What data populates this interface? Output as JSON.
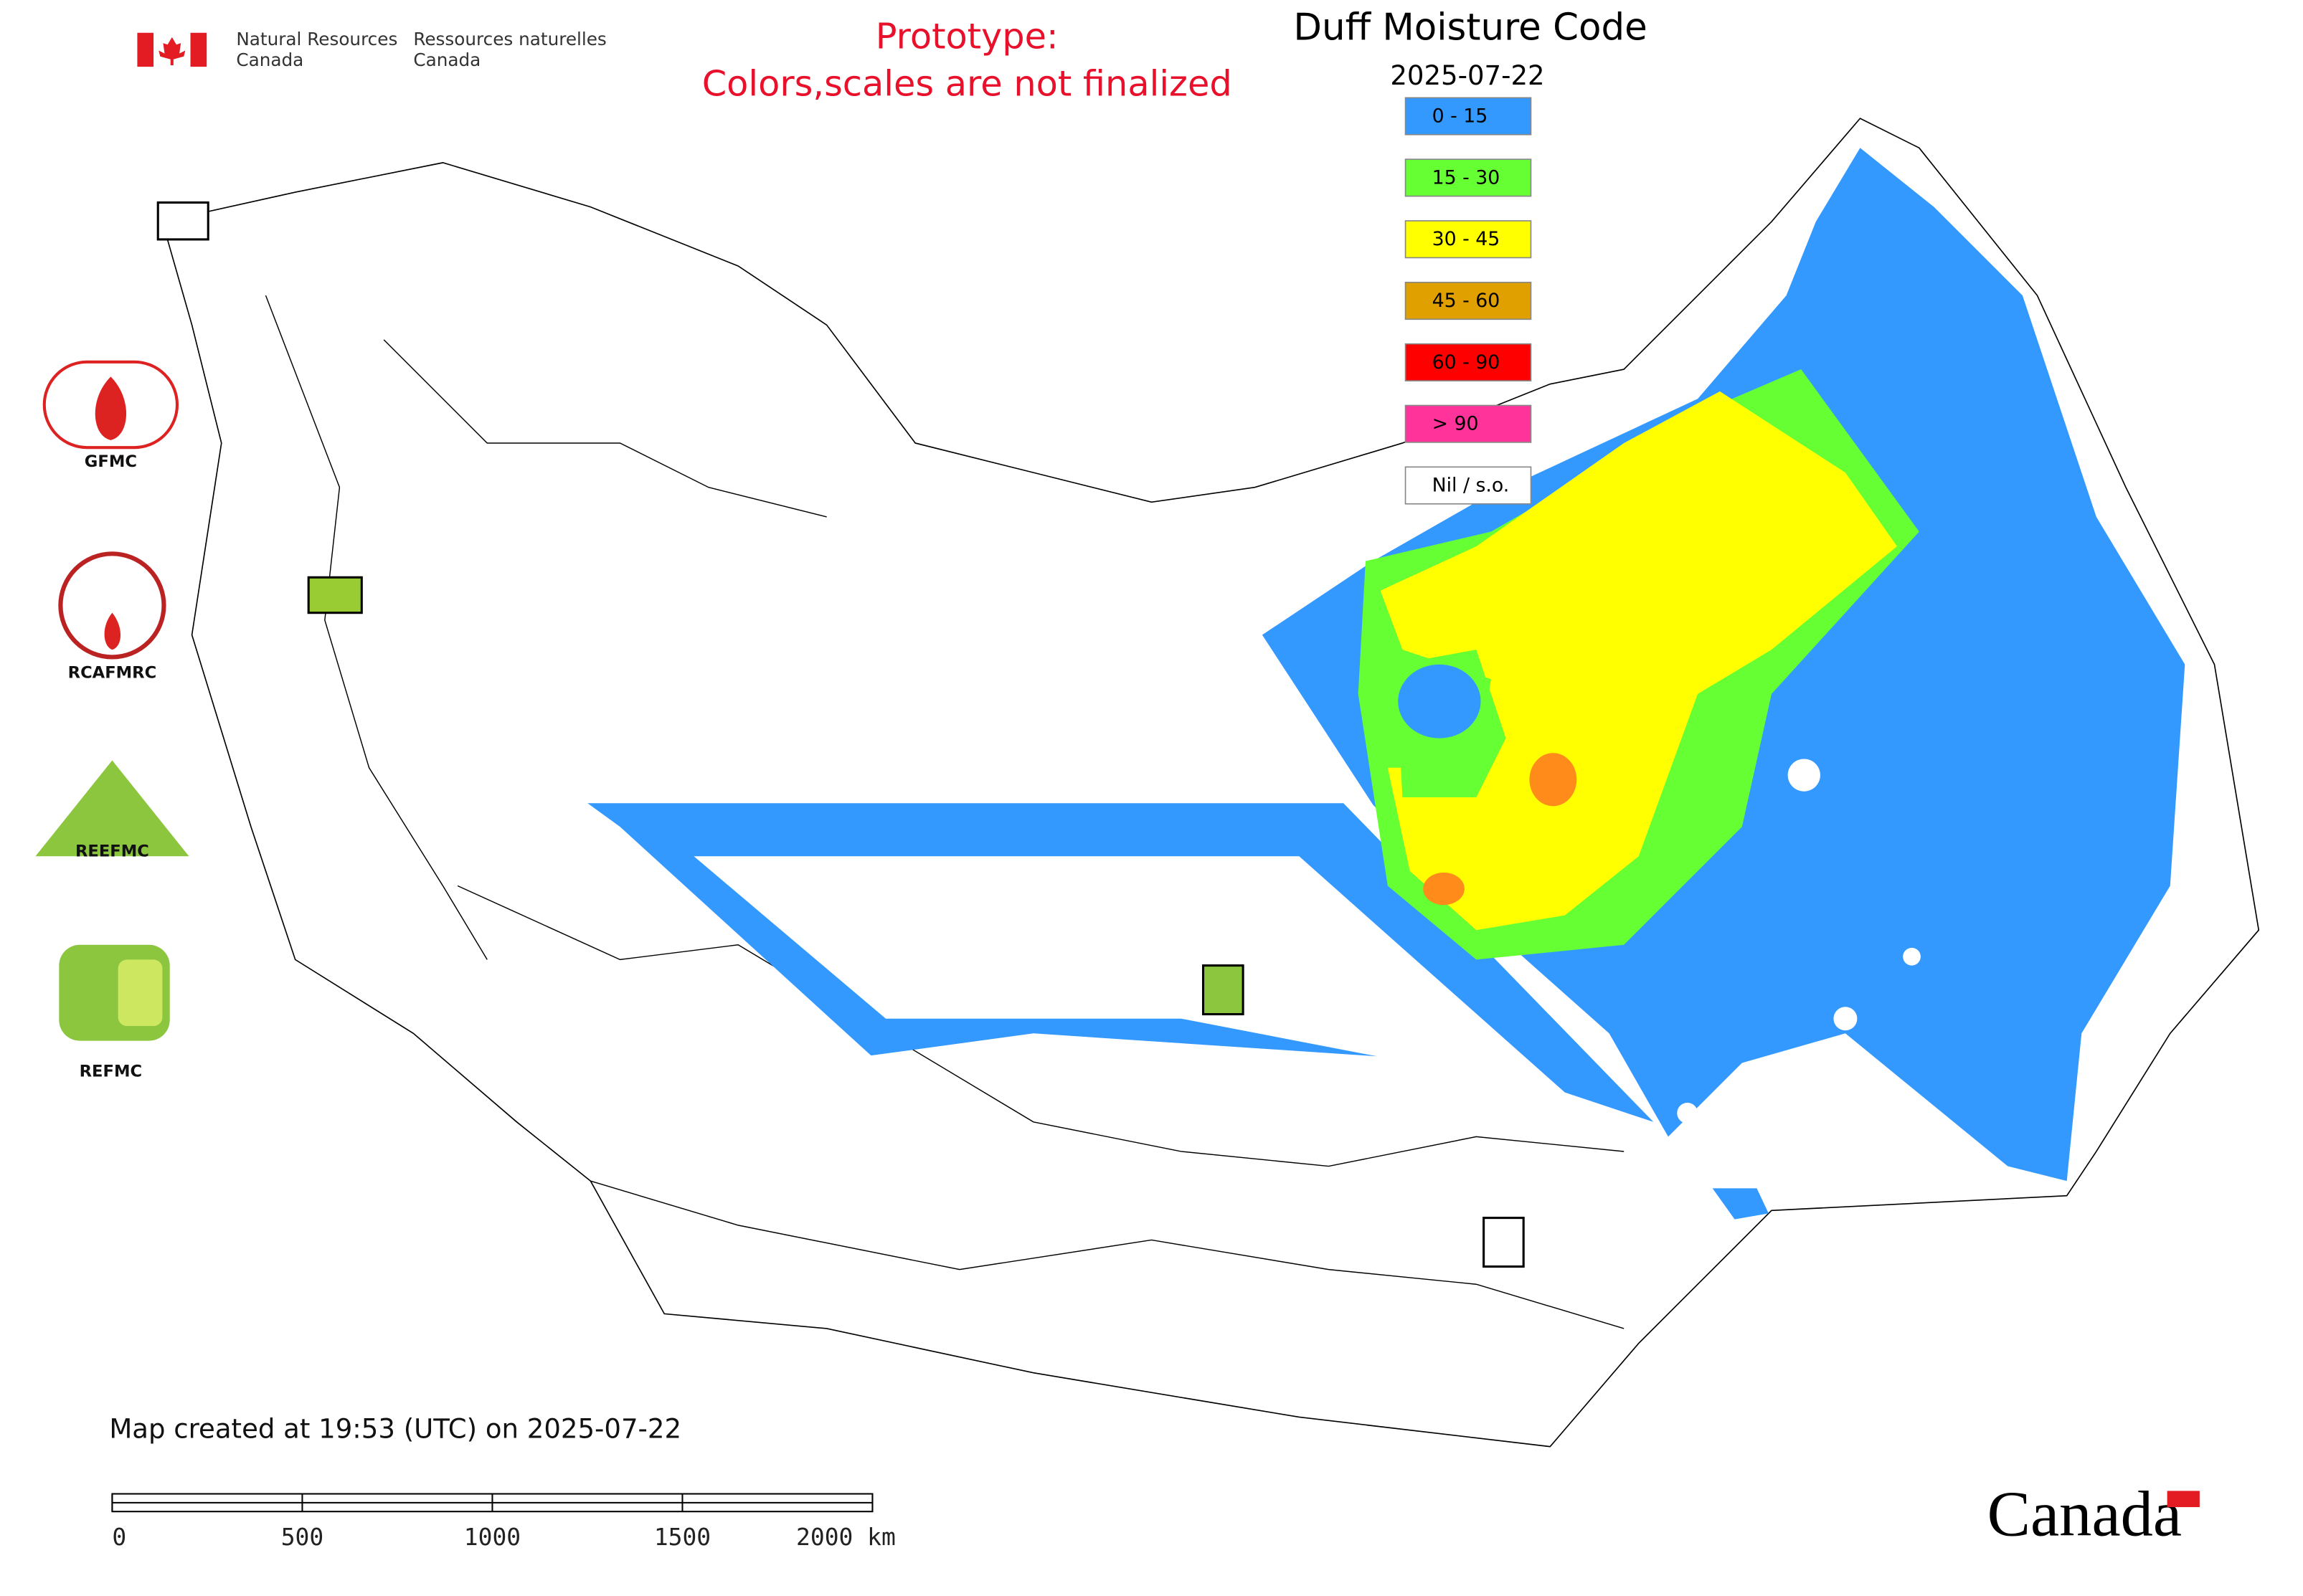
{
  "header": {
    "agency_en": [
      "Natural Resources",
      "Canada"
    ],
    "agency_fr": [
      "Ressources naturelles",
      "Canada"
    ],
    "notice": [
      "Prototype:",
      "Colors,scales are not finalized"
    ]
  },
  "title": "Duff Moisture Code",
  "date": "2025-07-22",
  "legend": [
    {
      "label": "0 - 15",
      "color": "#3399ff"
    },
    {
      "label": "15 - 30",
      "color": "#66ff33"
    },
    {
      "label": "30 - 45",
      "color": "#ffff00"
    },
    {
      "label": "45 - 60",
      "color": "#e0a000"
    },
    {
      "label": "60 - 90",
      "color": "#ff0000"
    },
    {
      "label": "> 90",
      "color": "#ff3399"
    },
    {
      "label": "Nil / s.o.",
      "color": "#ffffff"
    }
  ],
  "logos": [
    "GFMC",
    "RCAFMRC",
    "REEFMC",
    "REFMC"
  ],
  "footer": {
    "created": "Map created at 19:53 (UTC) on 2025-07-22",
    "scale_labels": [
      "0",
      "500",
      "1000",
      "1500",
      "2000 km"
    ],
    "wordmark": "Canada"
  }
}
